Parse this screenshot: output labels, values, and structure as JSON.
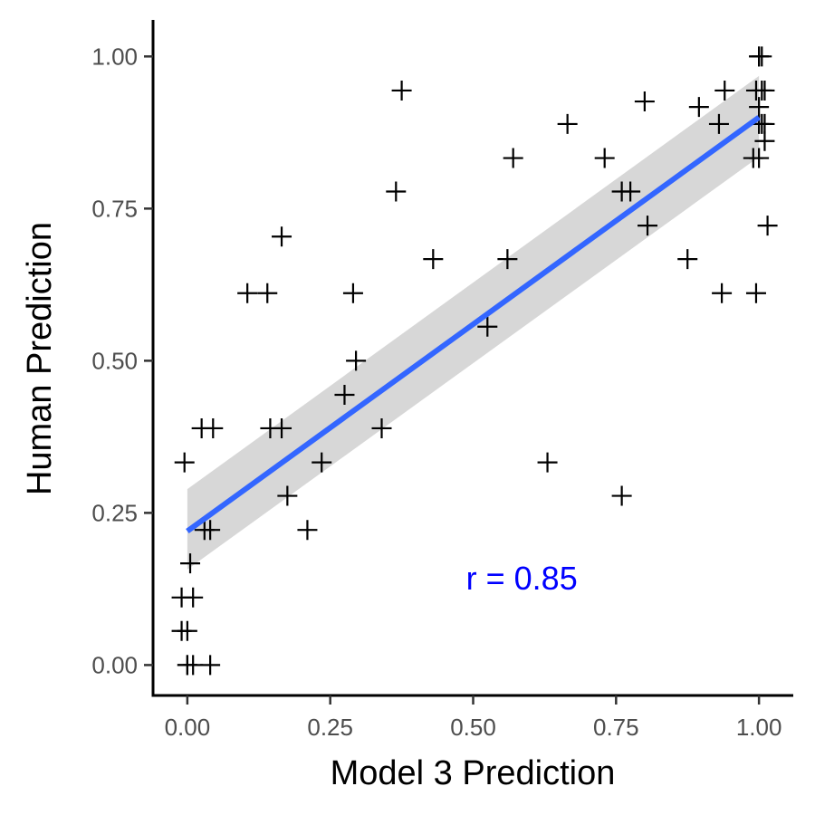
{
  "chart_data": {
    "type": "scatter",
    "title": "",
    "xlabel": "Model 3 Prediction",
    "ylabel": "Human Prediction",
    "xlim": [
      -0.06,
      1.06
    ],
    "ylim": [
      -0.05,
      1.06
    ],
    "x_ticks": [
      "0.00",
      "0.25",
      "0.50",
      "0.75",
      "1.00"
    ],
    "y_ticks": [
      "0.00",
      "0.25",
      "0.50",
      "0.75",
      "1.00"
    ],
    "grid": false,
    "marker": "plus",
    "points": [
      [
        0.0,
        0.0
      ],
      [
        0.0,
        0.0
      ],
      [
        0.01,
        0.0
      ],
      [
        0.04,
        0.0
      ],
      [
        -0.01,
        0.056
      ],
      [
        0.0,
        0.056
      ],
      [
        -0.01,
        0.111
      ],
      [
        0.01,
        0.111
      ],
      [
        0.005,
        0.167
      ],
      [
        0.03,
        0.222
      ],
      [
        0.04,
        0.222
      ],
      [
        -0.005,
        0.333
      ],
      [
        0.025,
        0.389
      ],
      [
        0.045,
        0.389
      ],
      [
        0.105,
        0.611
      ],
      [
        0.14,
        0.611
      ],
      [
        0.145,
        0.389
      ],
      [
        0.165,
        0.389
      ],
      [
        0.165,
        0.704
      ],
      [
        0.175,
        0.278
      ],
      [
        0.21,
        0.222
      ],
      [
        0.235,
        0.333
      ],
      [
        0.275,
        0.444
      ],
      [
        0.29,
        0.611
      ],
      [
        0.295,
        0.5
      ],
      [
        0.34,
        0.389
      ],
      [
        0.365,
        0.778
      ],
      [
        0.375,
        0.944
      ],
      [
        0.43,
        0.667
      ],
      [
        0.525,
        0.556
      ],
      [
        0.56,
        0.667
      ],
      [
        0.57,
        0.833
      ],
      [
        0.63,
        0.333
      ],
      [
        0.665,
        0.889
      ],
      [
        0.73,
        0.833
      ],
      [
        0.76,
        0.278
      ],
      [
        0.76,
        0.778
      ],
      [
        0.775,
        0.778
      ],
      [
        0.8,
        0.926
      ],
      [
        0.805,
        0.722
      ],
      [
        0.875,
        0.667
      ],
      [
        0.895,
        0.917
      ],
      [
        0.93,
        0.889
      ],
      [
        0.935,
        0.611
      ],
      [
        0.94,
        0.944
      ],
      [
        0.99,
        0.833
      ],
      [
        0.995,
        0.611
      ],
      [
        0.995,
        0.944
      ],
      [
        1.0,
        0.833
      ],
      [
        1.0,
        0.889
      ],
      [
        1.0,
        0.917
      ],
      [
        1.0,
        1.0
      ],
      [
        1.0,
        1.0
      ],
      [
        1.005,
        0.889
      ],
      [
        1.005,
        0.944
      ],
      [
        1.005,
        1.0
      ],
      [
        1.01,
        0.944
      ],
      [
        1.01,
        0.889
      ],
      [
        1.01,
        0.861
      ],
      [
        1.015,
        0.722
      ]
    ],
    "trend_line": {
      "x": [
        0.0,
        1.0
      ],
      "y": [
        0.22,
        0.9
      ],
      "color": "#3366ff",
      "ci_lower": [
        0.157,
        0.835
      ],
      "ci_upper": [
        0.289,
        0.968
      ],
      "ci_color": "#d3d3d3"
    },
    "annotation": {
      "text": "r = 0.85",
      "x": 0.49,
      "y": 0.145,
      "color": "#0000ff"
    }
  }
}
